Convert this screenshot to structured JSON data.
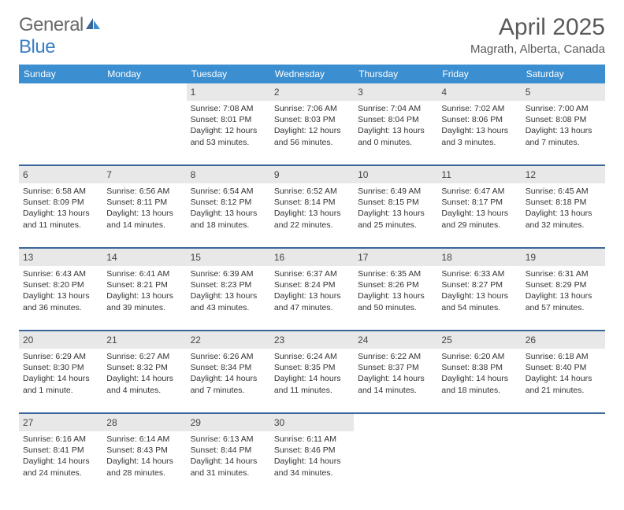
{
  "brand": {
    "part1": "General",
    "part2": "Blue",
    "color1": "#6a6a6a",
    "color2": "#3b7ec4"
  },
  "title": "April 2025",
  "location": "Magrath, Alberta, Canada",
  "header_bg": "#3b8ed0",
  "daynum_bg": "#e8e8e8",
  "rule_color": "#3b6699",
  "weekdays": [
    "Sunday",
    "Monday",
    "Tuesday",
    "Wednesday",
    "Thursday",
    "Friday",
    "Saturday"
  ],
  "weeks": [
    [
      null,
      null,
      {
        "d": "1",
        "sr": "7:08 AM",
        "ss": "8:01 PM",
        "dl": "12 hours and 53 minutes."
      },
      {
        "d": "2",
        "sr": "7:06 AM",
        "ss": "8:03 PM",
        "dl": "12 hours and 56 minutes."
      },
      {
        "d": "3",
        "sr": "7:04 AM",
        "ss": "8:04 PM",
        "dl": "13 hours and 0 minutes."
      },
      {
        "d": "4",
        "sr": "7:02 AM",
        "ss": "8:06 PM",
        "dl": "13 hours and 3 minutes."
      },
      {
        "d": "5",
        "sr": "7:00 AM",
        "ss": "8:08 PM",
        "dl": "13 hours and 7 minutes."
      }
    ],
    [
      {
        "d": "6",
        "sr": "6:58 AM",
        "ss": "8:09 PM",
        "dl": "13 hours and 11 minutes."
      },
      {
        "d": "7",
        "sr": "6:56 AM",
        "ss": "8:11 PM",
        "dl": "13 hours and 14 minutes."
      },
      {
        "d": "8",
        "sr": "6:54 AM",
        "ss": "8:12 PM",
        "dl": "13 hours and 18 minutes."
      },
      {
        "d": "9",
        "sr": "6:52 AM",
        "ss": "8:14 PM",
        "dl": "13 hours and 22 minutes."
      },
      {
        "d": "10",
        "sr": "6:49 AM",
        "ss": "8:15 PM",
        "dl": "13 hours and 25 minutes."
      },
      {
        "d": "11",
        "sr": "6:47 AM",
        "ss": "8:17 PM",
        "dl": "13 hours and 29 minutes."
      },
      {
        "d": "12",
        "sr": "6:45 AM",
        "ss": "8:18 PM",
        "dl": "13 hours and 32 minutes."
      }
    ],
    [
      {
        "d": "13",
        "sr": "6:43 AM",
        "ss": "8:20 PM",
        "dl": "13 hours and 36 minutes."
      },
      {
        "d": "14",
        "sr": "6:41 AM",
        "ss": "8:21 PM",
        "dl": "13 hours and 39 minutes."
      },
      {
        "d": "15",
        "sr": "6:39 AM",
        "ss": "8:23 PM",
        "dl": "13 hours and 43 minutes."
      },
      {
        "d": "16",
        "sr": "6:37 AM",
        "ss": "8:24 PM",
        "dl": "13 hours and 47 minutes."
      },
      {
        "d": "17",
        "sr": "6:35 AM",
        "ss": "8:26 PM",
        "dl": "13 hours and 50 minutes."
      },
      {
        "d": "18",
        "sr": "6:33 AM",
        "ss": "8:27 PM",
        "dl": "13 hours and 54 minutes."
      },
      {
        "d": "19",
        "sr": "6:31 AM",
        "ss": "8:29 PM",
        "dl": "13 hours and 57 minutes."
      }
    ],
    [
      {
        "d": "20",
        "sr": "6:29 AM",
        "ss": "8:30 PM",
        "dl": "14 hours and 1 minute."
      },
      {
        "d": "21",
        "sr": "6:27 AM",
        "ss": "8:32 PM",
        "dl": "14 hours and 4 minutes."
      },
      {
        "d": "22",
        "sr": "6:26 AM",
        "ss": "8:34 PM",
        "dl": "14 hours and 7 minutes."
      },
      {
        "d": "23",
        "sr": "6:24 AM",
        "ss": "8:35 PM",
        "dl": "14 hours and 11 minutes."
      },
      {
        "d": "24",
        "sr": "6:22 AM",
        "ss": "8:37 PM",
        "dl": "14 hours and 14 minutes."
      },
      {
        "d": "25",
        "sr": "6:20 AM",
        "ss": "8:38 PM",
        "dl": "14 hours and 18 minutes."
      },
      {
        "d": "26",
        "sr": "6:18 AM",
        "ss": "8:40 PM",
        "dl": "14 hours and 21 minutes."
      }
    ],
    [
      {
        "d": "27",
        "sr": "6:16 AM",
        "ss": "8:41 PM",
        "dl": "14 hours and 24 minutes."
      },
      {
        "d": "28",
        "sr": "6:14 AM",
        "ss": "8:43 PM",
        "dl": "14 hours and 28 minutes."
      },
      {
        "d": "29",
        "sr": "6:13 AM",
        "ss": "8:44 PM",
        "dl": "14 hours and 31 minutes."
      },
      {
        "d": "30",
        "sr": "6:11 AM",
        "ss": "8:46 PM",
        "dl": "14 hours and 34 minutes."
      },
      null,
      null,
      null
    ]
  ]
}
